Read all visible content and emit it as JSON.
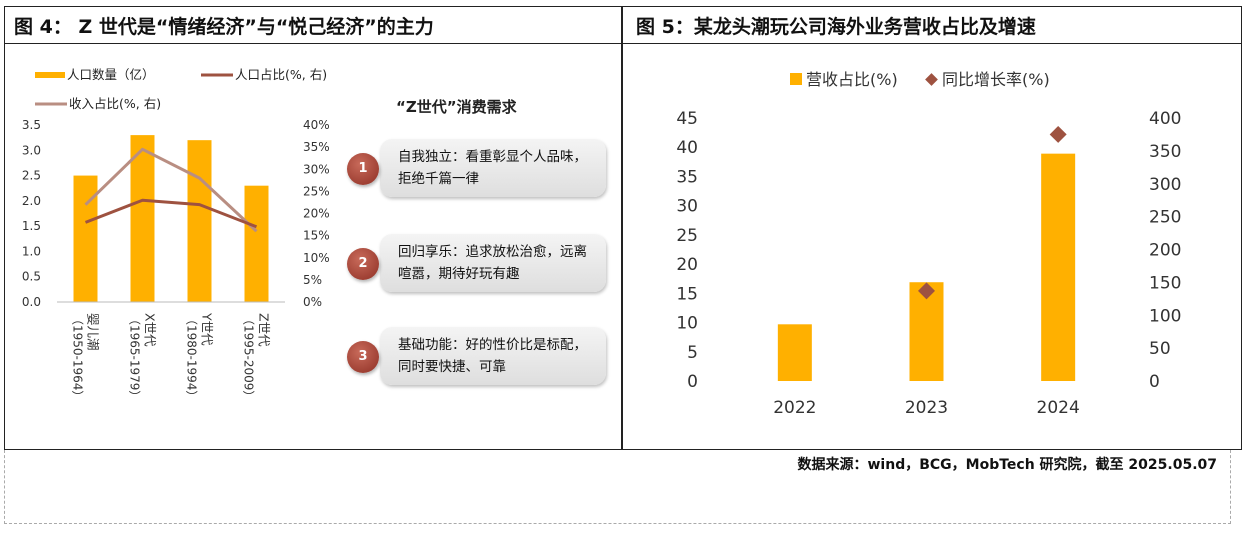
{
  "left_panel": {
    "title": "图 4： Z 世代是“情绪经济”与“悦己经济”的主力",
    "consume_title": "“Z世代”消费需求",
    "cards": [
      {
        "num": "1",
        "text": "自我独立：看重彰显个人品味，拒绝千篇一律"
      },
      {
        "num": "2",
        "text": "回归享乐：追求放松治愈，远离喧嚣，期待好玩有趣"
      },
      {
        "num": "3",
        "text": "基础功能：好的性价比是标配，同时要快捷、可靠"
      }
    ]
  },
  "right_panel": {
    "title": "图 5：某龙头潮玩公司海外业务营收占比及增速"
  },
  "source": "数据来源：wind，BCG，MobTech 研究院，截至 2025.05.07",
  "colors": {
    "bar": "#FFB000",
    "line_population": "#9E5240",
    "line_income": "#B98E82",
    "marker": "#9E5240",
    "badge": "#9B3A2E"
  },
  "chart_data": [
    {
      "type": "bar",
      "categories": [
        "婴儿潮（1950-1964）",
        "X世代（1965-1979）",
        "Y世代（1980-1994）",
        "Z世代（1995-2009）"
      ],
      "category_names": [
        "婴儿潮",
        "X世代",
        "Y世代",
        "Z世代"
      ],
      "category_ranges": [
        "（1950-1964）",
        "（1965-1979）",
        "（1980-1994）",
        "（1995-2009）"
      ],
      "series": [
        {
          "name": "人口数量（亿）",
          "type": "bar",
          "axis": "left",
          "values": [
            2.5,
            3.3,
            3.2,
            2.3
          ]
        },
        {
          "name": "人口占比(%, 右)",
          "type": "line",
          "axis": "right",
          "values": [
            18,
            23,
            22,
            17
          ]
        },
        {
          "name": "收入占比(%, 右)",
          "type": "line",
          "axis": "right",
          "values": [
            22,
            34.5,
            28,
            16
          ]
        }
      ],
      "y_left": {
        "range": [
          0,
          3.5
        ],
        "ticks": [
          "0.0",
          "0.5",
          "1.0",
          "1.5",
          "2.0",
          "2.5",
          "3.0",
          "3.5"
        ]
      },
      "y_right": {
        "range": [
          0,
          40
        ],
        "ticks": [
          "0%",
          "5%",
          "10%",
          "15%",
          "20%",
          "25%",
          "30%",
          "35%",
          "40%"
        ]
      },
      "legend_position": "top-left",
      "grid": false
    },
    {
      "type": "bar",
      "categories": [
        "2022",
        "2023",
        "2024"
      ],
      "series": [
        {
          "name": "营收占比(%)",
          "type": "bar",
          "axis": "left",
          "values": [
            9.7,
            16.9,
            38.9
          ]
        },
        {
          "name": "同比增长率(%)",
          "type": "scatter",
          "axis": "right",
          "values": [
            null,
            137,
            375
          ]
        }
      ],
      "y_left": {
        "range": [
          0,
          45
        ],
        "ticks": [
          "0",
          "5",
          "10",
          "15",
          "20",
          "25",
          "30",
          "35",
          "40",
          "45"
        ]
      },
      "y_right": {
        "range": [
          0,
          400
        ],
        "ticks": [
          "0",
          "50",
          "100",
          "150",
          "200",
          "250",
          "300",
          "350",
          "400"
        ]
      },
      "legend_position": "top",
      "grid": false
    }
  ]
}
